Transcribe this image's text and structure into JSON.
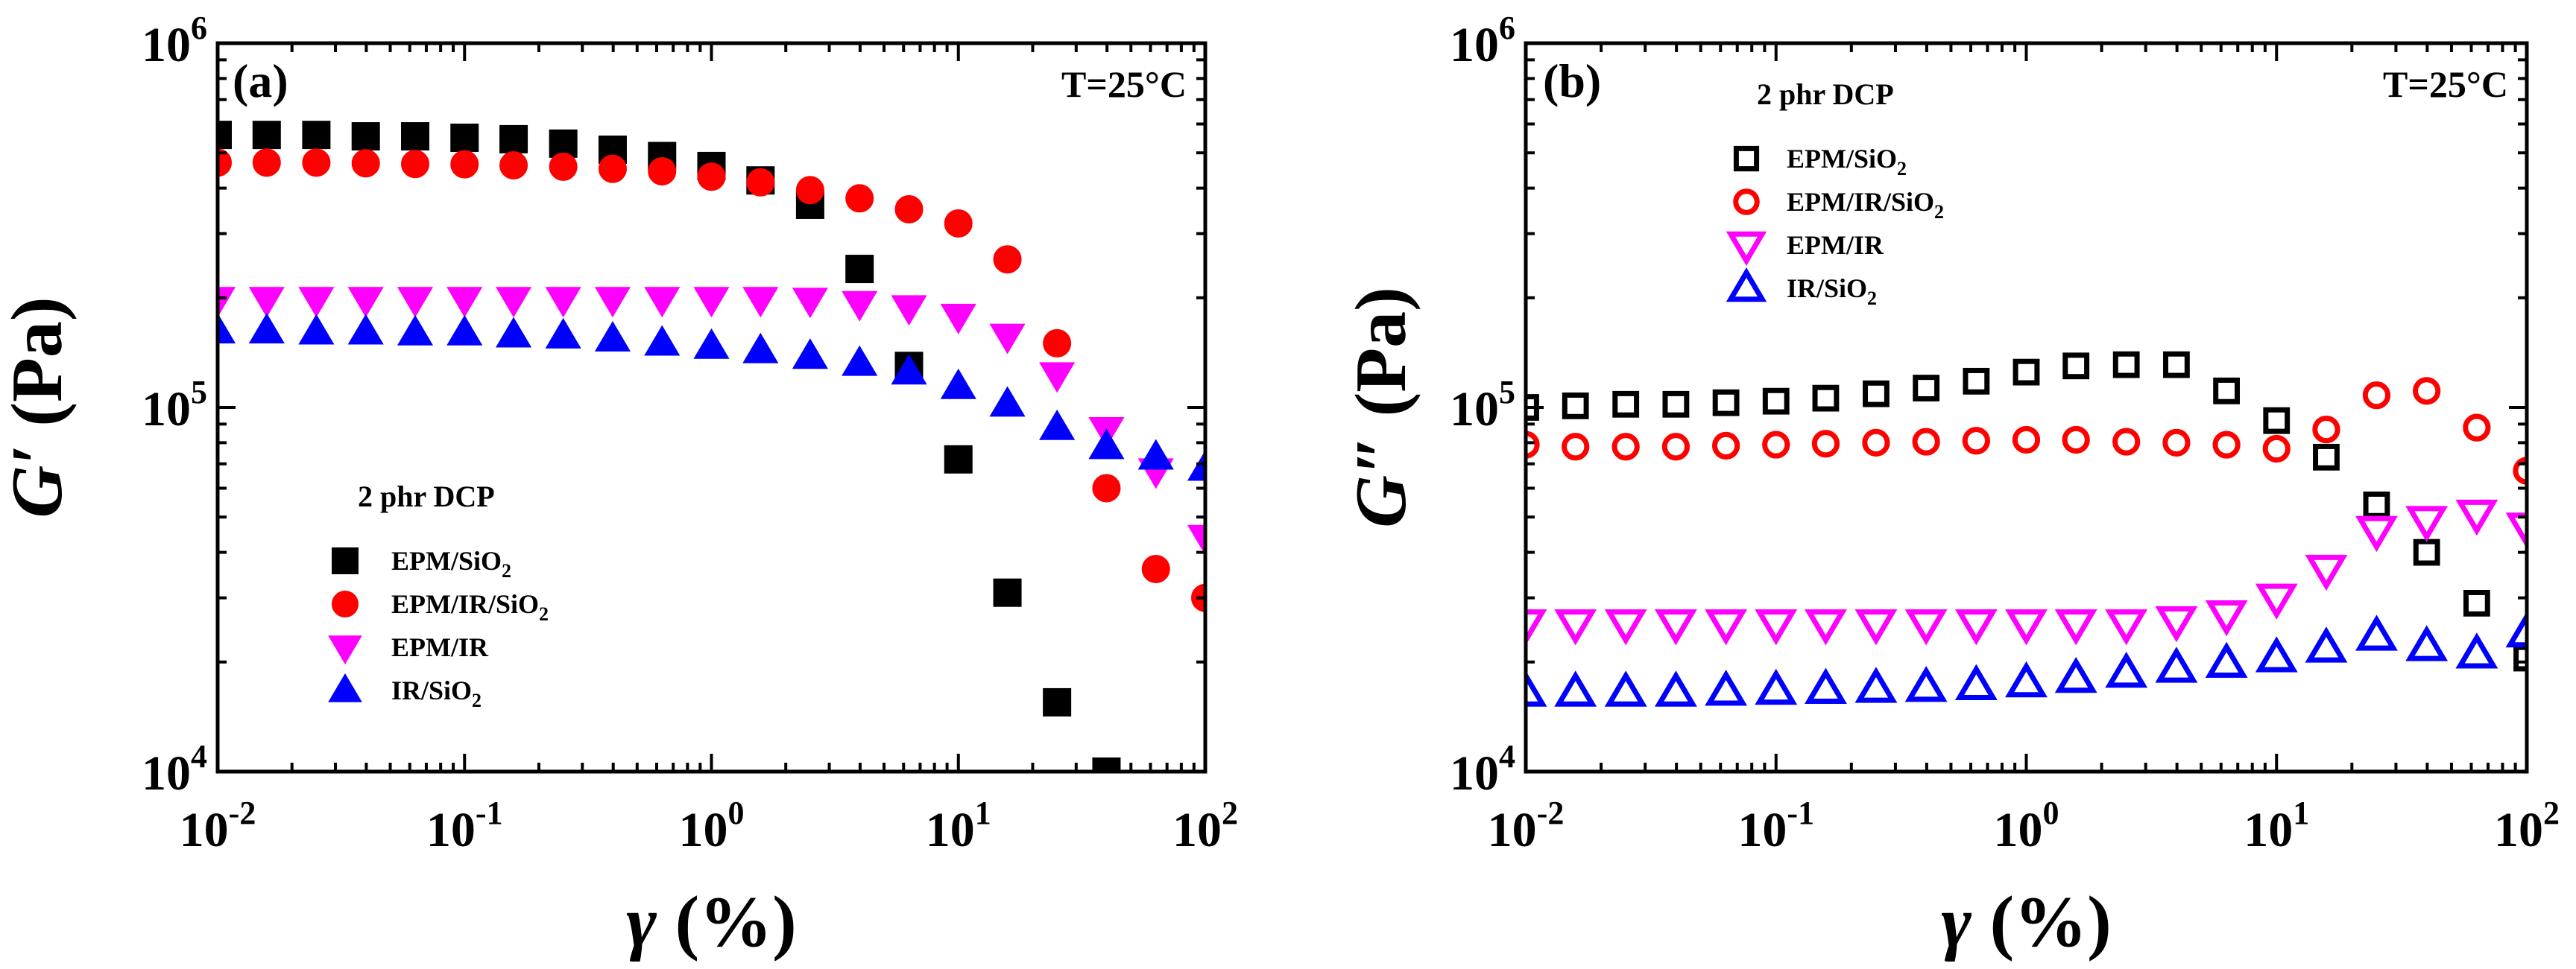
{
  "chart_data": [
    {
      "type": "scatter",
      "panel_label": "(a)",
      "temperature": "T=25°C",
      "legend_title": "2 phr DCP",
      "xlabel_sym": "γ",
      "xlabel_unit": " (%)",
      "ylabel_sym": "G′",
      "ylabel_unit": " (Pa)",
      "xscale": "log",
      "yscale": "log",
      "xlim": [
        0.01,
        100
      ],
      "ylim": [
        10000,
        1000000
      ],
      "x_tick_labels": [
        {
          "base": "10",
          "exp": "-2"
        },
        {
          "base": "10",
          "exp": "-1"
        },
        {
          "base": "10",
          "exp": "0"
        },
        {
          "base": "10",
          "exp": "1"
        },
        {
          "base": "10",
          "exp": "2"
        }
      ],
      "y_tick_labels": [
        {
          "base": "10",
          "exp": "4"
        },
        {
          "base": "10",
          "exp": "5"
        },
        {
          "base": "10",
          "exp": "6"
        }
      ],
      "x": [
        0.01,
        0.0158,
        0.0251,
        0.0398,
        0.0631,
        0.1,
        0.158,
        0.251,
        0.398,
        0.631,
        1,
        1.58,
        2.51,
        3.98,
        6.31,
        10,
        15.8,
        25.1,
        39.8,
        63.1,
        100
      ],
      "series": [
        {
          "name": "EPM/SiO",
          "sub": "2",
          "color": "#000000",
          "marker": "square",
          "values": [
            560000,
            560000,
            560000,
            555000,
            555000,
            550000,
            545000,
            530000,
            510000,
            490000,
            460000,
            420000,
            360000,
            240000,
            130000,
            72000,
            31000,
            15500,
            10000,
            null,
            null
          ]
        },
        {
          "name": "EPM/IR/SiO",
          "sub": "2",
          "color": "#ff0000",
          "marker": "circle",
          "values": [
            470000,
            470000,
            470000,
            468000,
            466000,
            465000,
            462000,
            458000,
            452000,
            445000,
            430000,
            415000,
            395000,
            375000,
            350000,
            320000,
            255000,
            150000,
            60000,
            36000,
            30000
          ]
        },
        {
          "name": "EPM/IR",
          "sub": "",
          "color": "#ff00ff",
          "marker": "triangle-down",
          "values": [
            198000,
            198000,
            198000,
            198000,
            198000,
            198000,
            198000,
            198000,
            198000,
            198000,
            198000,
            198000,
            197000,
            193000,
            188000,
            178000,
            157000,
            123000,
            87000,
            67000,
            44000
          ]
        },
        {
          "name": "IR/SiO",
          "sub": "2",
          "color": "#0000ff",
          "marker": "triangle-up",
          "values": [
            162000,
            162000,
            161000,
            161000,
            160000,
            160000,
            158000,
            157000,
            154000,
            150000,
            147000,
            143000,
            138000,
            132000,
            125000,
            114000,
            102000,
            88000,
            78000,
            73000,
            68000
          ]
        }
      ]
    },
    {
      "type": "scatter",
      "panel_label": "(b)",
      "temperature": "T=25°C",
      "legend_title": "2 phr DCP",
      "xlabel_sym": "γ",
      "xlabel_unit": " (%)",
      "ylabel_sym": "G″",
      "ylabel_unit": " (Pa)",
      "xscale": "log",
      "yscale": "log",
      "xlim": [
        0.01,
        100
      ],
      "ylim": [
        10000,
        1000000
      ],
      "x_tick_labels": [
        {
          "base": "10",
          "exp": "-2"
        },
        {
          "base": "10",
          "exp": "-1"
        },
        {
          "base": "10",
          "exp": "0"
        },
        {
          "base": "10",
          "exp": "1"
        },
        {
          "base": "10",
          "exp": "2"
        }
      ],
      "y_tick_labels": [
        {
          "base": "10",
          "exp": "4"
        },
        {
          "base": "10",
          "exp": "5"
        },
        {
          "base": "10",
          "exp": "6"
        }
      ],
      "x": [
        0.01,
        0.0158,
        0.0251,
        0.0398,
        0.0631,
        0.1,
        0.158,
        0.251,
        0.398,
        0.631,
        1,
        1.58,
        2.51,
        3.98,
        6.31,
        10,
        15.8,
        25.1,
        39.8,
        63.1,
        100
      ],
      "series": [
        {
          "name": "EPM/SiO",
          "sub": "2",
          "color": "#000000",
          "marker": "square-open",
          "values": [
            100000,
            101000,
            102000,
            102000,
            103000,
            104000,
            106000,
            109000,
            113000,
            118000,
            125000,
            130000,
            131000,
            131000,
            111000,
            92000,
            73000,
            54000,
            40000,
            29000,
            20500
          ]
        },
        {
          "name": "EPM/IR/SiO",
          "sub": "2",
          "color": "#ff0000",
          "marker": "circle-open",
          "values": [
            79000,
            78000,
            78000,
            78000,
            78500,
            79000,
            79500,
            80000,
            80500,
            81000,
            81500,
            81500,
            80500,
            80000,
            79000,
            77000,
            87000,
            108000,
            111000,
            88000,
            67000
          ]
        },
        {
          "name": "EPM/IR",
          "sub": "",
          "color": "#ff00ff",
          "marker": "triangle-down-open",
          "values": [
            25500,
            25500,
            25500,
            25500,
            25500,
            25500,
            25500,
            25500,
            25500,
            25500,
            25500,
            25500,
            25500,
            26000,
            27000,
            30000,
            36000,
            46000,
            49000,
            51000,
            47000
          ]
        },
        {
          "name": "IR/SiO",
          "sub": "2",
          "color": "#0000ff",
          "marker": "triangle-up-open",
          "values": [
            16500,
            16500,
            16500,
            16500,
            16600,
            16700,
            16800,
            16900,
            17000,
            17200,
            17500,
            18000,
            18600,
            19200,
            19800,
            20500,
            21800,
            23500,
            22000,
            21000,
            24000
          ]
        }
      ]
    }
  ]
}
